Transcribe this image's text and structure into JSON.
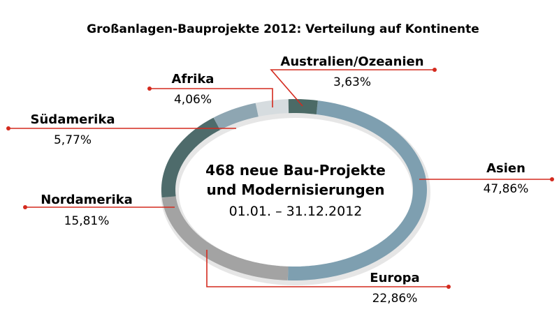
{
  "chart_data": {
    "type": "pie",
    "variant": "donut",
    "title": "Großanlagen-Bauprojekte 2012: Verteilung auf Kontinente",
    "center_text": {
      "line1": "468 neue Bau-Projekte",
      "line2": "und Modernisierungen",
      "line3": "01.01. – 31.12.2012"
    },
    "slices": [
      {
        "name": "Asien",
        "value": 47.86,
        "label": "47,86%",
        "color": "#7e9fb0"
      },
      {
        "name": "Europa",
        "value": 22.86,
        "label": "22,86%",
        "color": "#a3a3a3"
      },
      {
        "name": "Nordamerika",
        "value": 15.81,
        "label": "15,81%",
        "color": "#4e6b6b"
      },
      {
        "name": "Südamerika",
        "value": 5.77,
        "label": "5,77%",
        "color": "#8ea6b2"
      },
      {
        "name": "Afrika",
        "value": 4.06,
        "label": "4,06%",
        "color": "#d6dcdf"
      },
      {
        "name": "Australien/Ozeanien",
        "value": 3.63,
        "label": "3,63%",
        "color": "#4b6a66"
      }
    ],
    "accent_color": "#d42a1e"
  }
}
